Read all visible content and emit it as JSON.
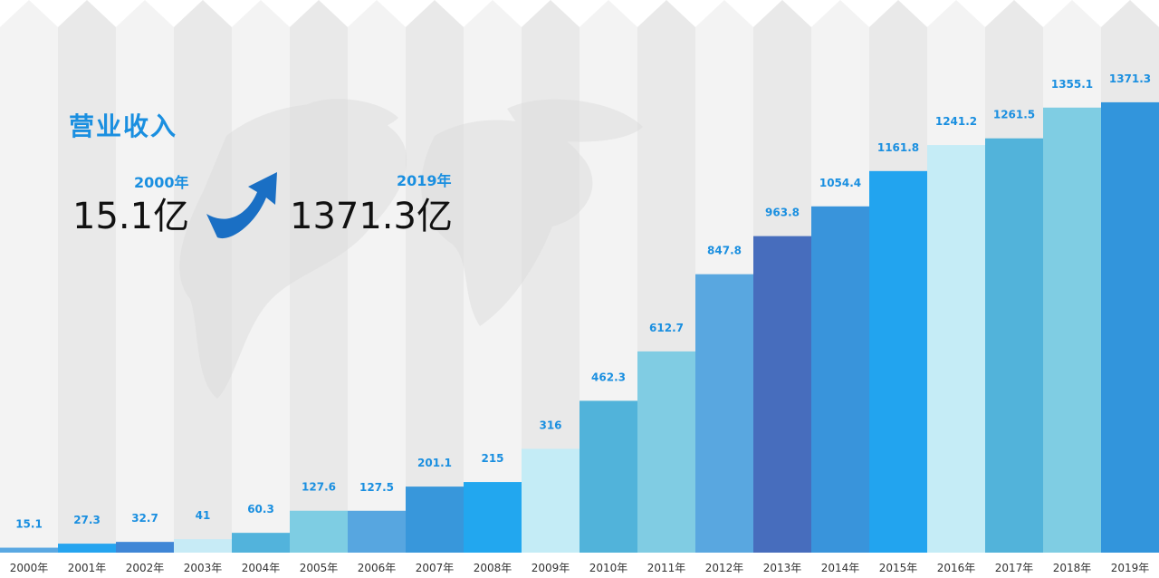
{
  "headline": {
    "title": "营业收入",
    "start": {
      "year": "2000年",
      "value": "15.1亿"
    },
    "end": {
      "year": "2019年",
      "value": "1371.3亿"
    }
  },
  "chart_data": {
    "type": "bar",
    "title": "营业收入",
    "categories": [
      "2000年",
      "2001年",
      "2002年",
      "2003年",
      "2004年",
      "2005年",
      "2006年",
      "2007年",
      "2008年",
      "2009年",
      "2010年",
      "2011年",
      "2012年",
      "2013年",
      "2014年",
      "2015年",
      "2016年",
      "2017年",
      "2018年",
      "2019年"
    ],
    "values": [
      15.1,
      27.3,
      32.7,
      41,
      60.3,
      127.6,
      127.5,
      201.1,
      215,
      316,
      462.3,
      612.7,
      847.8,
      963.8,
      1054.4,
      1161.8,
      1241.2,
      1261.5,
      1355.1,
      1371.3
    ],
    "value_labels": [
      "15.1",
      "27.3",
      "32.7",
      "41",
      "60.3",
      "127.6",
      "127.5",
      "201.1",
      "215",
      "316",
      "462.3",
      "612.7",
      "847.8",
      "963.8",
      "1054.4",
      "1161.8",
      "1241.2",
      "1261.5",
      "1355.1",
      "1371.3"
    ],
    "ylim": [
      0,
      1600
    ],
    "grid": false,
    "legend": "none",
    "bar_colors": [
      "#5aa8e2",
      "#25a4ef",
      "#3f86d6",
      "#c7ebf6",
      "#52b3dc",
      "#7ecde3",
      "#57a6e0",
      "#3897db",
      "#22a7ef",
      "#c4ecf6",
      "#51b3da",
      "#80cce3",
      "#59a7e0",
      "#476dbd",
      "#3994db",
      "#22a4ef",
      "#c5ecf6",
      "#52b3da",
      "#7fcde3",
      "#3295dc"
    ],
    "column_colors": [
      "#f3f3f3",
      "#e9e9e9"
    ],
    "label_color": "#1a8fe0",
    "axis_label_color": "#333333"
  }
}
